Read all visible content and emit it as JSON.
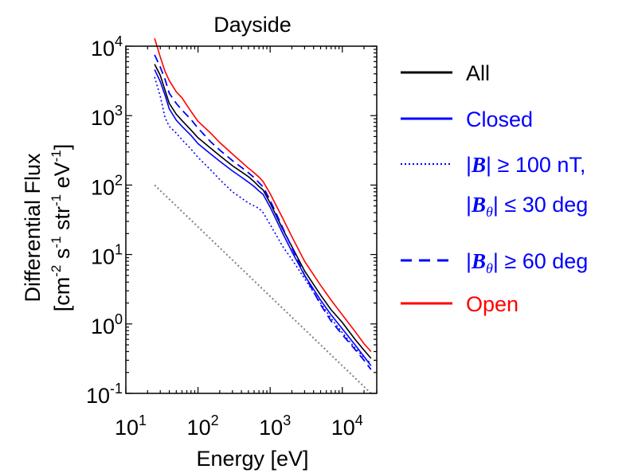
{
  "chart_data": {
    "type": "line",
    "title": "Dayside",
    "xlabel": "Energy [eV]",
    "ylabel": {
      "line1": "Differential Flux",
      "line2_parts": [
        "[cm",
        "-2",
        " s",
        "-1",
        " str",
        "-1",
        " eV",
        "-1",
        "]"
      ]
    },
    "x_scale": "log",
    "y_scale": "log",
    "xlim": [
      10,
      30000
    ],
    "ylim": [
      0.1,
      10000
    ],
    "x_ticks": [
      {
        "base": "10",
        "exp": "1",
        "value": 10
      },
      {
        "base": "10",
        "exp": "2",
        "value": 100
      },
      {
        "base": "10",
        "exp": "3",
        "value": 1000
      },
      {
        "base": "10",
        "exp": "4",
        "value": 10000
      }
    ],
    "y_ticks": [
      {
        "base": "10",
        "exp": "-1",
        "value": 0.1
      },
      {
        "base": "10",
        "exp": "0",
        "value": 1
      },
      {
        "base": "10",
        "exp": "1",
        "value": 10
      },
      {
        "base": "10",
        "exp": "2",
        "value": 100
      },
      {
        "base": "10",
        "exp": "3",
        "value": 1000
      },
      {
        "base": "10",
        "exp": "4",
        "value": 10000
      }
    ],
    "grid": false,
    "legend_position": "right",
    "series": [
      {
        "id": "all",
        "color": "#000000",
        "dash": "solid",
        "points": [
          [
            25,
            5500
          ],
          [
            30,
            3800
          ],
          [
            35,
            2300
          ],
          [
            40,
            1500
          ],
          [
            50,
            1050
          ],
          [
            60,
            850
          ],
          [
            80,
            620
          ],
          [
            100,
            480
          ],
          [
            150,
            340
          ],
          [
            200,
            265
          ],
          [
            300,
            190
          ],
          [
            400,
            155
          ],
          [
            500,
            132
          ],
          [
            600,
            112
          ],
          [
            700,
            95
          ],
          [
            800,
            85
          ],
          [
            1000,
            55
          ],
          [
            1500,
            23
          ],
          [
            2000,
            13
          ],
          [
            3000,
            5.8
          ],
          [
            5000,
            2.6
          ],
          [
            7000,
            1.6
          ],
          [
            10000,
            1.05
          ],
          [
            15000,
            0.6
          ],
          [
            20000,
            0.42
          ],
          [
            25000,
            0.32
          ]
        ]
      },
      {
        "id": "closed",
        "color": "#0000ff",
        "dash": "solid",
        "points": [
          [
            25,
            4600
          ],
          [
            30,
            3100
          ],
          [
            35,
            1950
          ],
          [
            40,
            1250
          ],
          [
            50,
            860
          ],
          [
            60,
            700
          ],
          [
            80,
            520
          ],
          [
            100,
            395
          ],
          [
            150,
            280
          ],
          [
            200,
            220
          ],
          [
            300,
            160
          ],
          [
            400,
            130
          ],
          [
            500,
            110
          ],
          [
            600,
            95
          ],
          [
            700,
            82
          ],
          [
            800,
            73
          ],
          [
            1000,
            48
          ],
          [
            1500,
            20
          ],
          [
            2000,
            11
          ],
          [
            3000,
            5.0
          ],
          [
            5000,
            2.2
          ],
          [
            7000,
            1.35
          ],
          [
            10000,
            0.85
          ],
          [
            15000,
            0.5
          ],
          [
            20000,
            0.34
          ],
          [
            25000,
            0.25
          ]
        ]
      },
      {
        "id": "strong-b",
        "color": "#0000ff",
        "dash": "dotted",
        "points": [
          [
            25,
            3600
          ],
          [
            30,
            1900
          ],
          [
            35,
            930
          ],
          [
            40,
            700
          ],
          [
            50,
            560
          ],
          [
            60,
            450
          ],
          [
            80,
            330
          ],
          [
            100,
            250
          ],
          [
            150,
            165
          ],
          [
            200,
            120
          ],
          [
            300,
            80
          ],
          [
            400,
            65
          ],
          [
            500,
            55
          ],
          [
            600,
            50
          ],
          [
            700,
            46
          ],
          [
            800,
            40
          ],
          [
            1000,
            27
          ],
          [
            1500,
            13
          ],
          [
            2000,
            8.5
          ],
          [
            3000,
            4.5
          ],
          [
            5000,
            2.0
          ],
          [
            7000,
            1.2
          ],
          [
            10000,
            0.75
          ],
          [
            15000,
            0.45
          ],
          [
            20000,
            0.33
          ],
          [
            25000,
            0.27
          ]
        ]
      },
      {
        "id": "high-theta",
        "color": "#0000ff",
        "dash": "dashed",
        "points": [
          [
            25,
            7500
          ],
          [
            30,
            5000
          ],
          [
            35,
            3300
          ],
          [
            40,
            2100
          ],
          [
            50,
            1500
          ],
          [
            60,
            1200
          ],
          [
            80,
            880
          ],
          [
            100,
            660
          ],
          [
            150,
            420
          ],
          [
            200,
            320
          ],
          [
            300,
            225
          ],
          [
            400,
            180
          ],
          [
            500,
            150
          ],
          [
            600,
            128
          ],
          [
            700,
            108
          ],
          [
            800,
            94
          ],
          [
            1000,
            60
          ],
          [
            1500,
            24
          ],
          [
            2000,
            12.5
          ],
          [
            3000,
            5.0
          ],
          [
            5000,
            1.9
          ],
          [
            7000,
            1.1
          ],
          [
            10000,
            0.7
          ],
          [
            15000,
            0.43
          ],
          [
            20000,
            0.3
          ],
          [
            25000,
            0.22
          ]
        ]
      },
      {
        "id": "open",
        "color": "#ff0000",
        "dash": "solid",
        "points": [
          [
            25,
            13000
          ],
          [
            30,
            7000
          ],
          [
            35,
            4300
          ],
          [
            40,
            3200
          ],
          [
            50,
            2200
          ],
          [
            60,
            1800
          ],
          [
            80,
            1150
          ],
          [
            100,
            830
          ],
          [
            150,
            560
          ],
          [
            200,
            410
          ],
          [
            300,
            280
          ],
          [
            400,
            215
          ],
          [
            500,
            175
          ],
          [
            600,
            150
          ],
          [
            700,
            130
          ],
          [
            800,
            112
          ],
          [
            1000,
            75
          ],
          [
            1500,
            33
          ],
          [
            2000,
            18
          ],
          [
            3000,
            8.0
          ],
          [
            5000,
            3.6
          ],
          [
            7000,
            2.2
          ],
          [
            10000,
            1.35
          ],
          [
            15000,
            0.78
          ],
          [
            20000,
            0.52
          ],
          [
            25000,
            0.4
          ]
        ]
      },
      {
        "id": "reference",
        "color": "#808080",
        "dash": "dotted",
        "points": [
          [
            25,
            100
          ],
          [
            25000,
            0.1
          ]
        ]
      }
    ],
    "legend": [
      {
        "series": "all",
        "color": "#000000",
        "dash": "solid",
        "label": "All"
      },
      {
        "series": "closed",
        "color": "#0000ff",
        "dash": "solid",
        "label": "Closed"
      },
      {
        "series": "strong-b",
        "color": "#0000ff",
        "dash": "dotted",
        "label_line1": {
          "bar1": "|",
          "var": "B",
          "bar2": "|",
          "rel": " ≥ 100 nT,"
        },
        "label_line2": {
          "bar1": "|",
          "var": "B",
          "sub": "θ",
          "bar2": "|",
          "rel": " ≤ 30 deg"
        }
      },
      {
        "series": "high-theta",
        "color": "#0000ff",
        "dash": "dashed",
        "label_line1": {
          "bar1": "|",
          "var": "B",
          "sub": "θ",
          "bar2": "|",
          "rel": " ≥ 60 deg"
        }
      },
      {
        "series": "open",
        "color": "#ff0000",
        "dash": "solid",
        "label": "Open"
      }
    ]
  }
}
